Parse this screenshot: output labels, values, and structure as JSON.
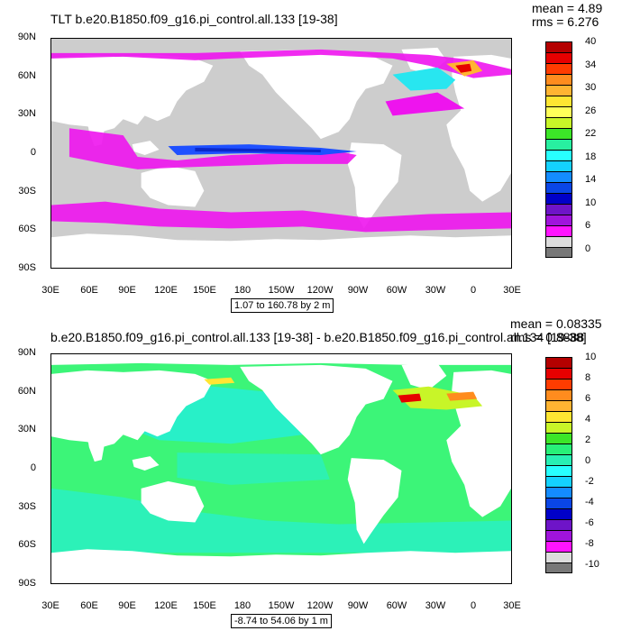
{
  "top": {
    "title": "TLT b.e20.B1850.f09_g16.pi_control.all.133 [19-38]",
    "mean": "mean = 4.89",
    "rms": "rms = 6.276",
    "range_text": "1.07 to 160.78 by 2 m",
    "colorbar": {
      "labels": [
        "40",
        "34",
        "30",
        "26",
        "22",
        "18",
        "14",
        "10",
        "6",
        "0"
      ],
      "colors": [
        "#b40000",
        "#e60000",
        "#ff3c00",
        "#ff8c1e",
        "#ffb432",
        "#ffe632",
        "#ffff5a",
        "#c8f528",
        "#3ce628",
        "#28f0a0",
        "#28ffff",
        "#14d2ff",
        "#148cff",
        "#0a46e6",
        "#0000c8",
        "#6e14c8",
        "#a014dc",
        "#ff14ff",
        "#dcdcdc",
        "#787878"
      ]
    }
  },
  "bottom": {
    "title": "b.e20.B1850.f09_g16.pi_control.all.133 [19-38] - b.e20.B1850.f09_g16.pi_control.all.134 [19-38]",
    "mean": "mean = 0.08335",
    "rms": "rms = 0.8888",
    "range_text": "-8.74 to 54.06 by 1 m",
    "colorbar": {
      "labels": [
        "10",
        "8",
        "6",
        "4",
        "2",
        "0",
        "-2",
        "-4",
        "-6",
        "-8",
        "-10"
      ],
      "colors": [
        "#b40000",
        "#e60000",
        "#ff3c00",
        "#ff8c1e",
        "#ffb432",
        "#ffe632",
        "#c8f528",
        "#3ce628",
        "#28f078",
        "#28f0b4",
        "#28ffff",
        "#14d2ff",
        "#148cff",
        "#0a46e6",
        "#0000c8",
        "#6e14c8",
        "#a014dc",
        "#ff14ff",
        "#dcdcdc",
        "#787878"
      ]
    }
  },
  "axes": {
    "lat_labels": [
      "90N",
      "60N",
      "30N",
      "0",
      "30S",
      "60S",
      "90S"
    ],
    "lon_labels": [
      "30E",
      "60E",
      "90E",
      "120E",
      "150E",
      "180",
      "150W",
      "120W",
      "90W",
      "60W",
      "30W",
      "0",
      "30E"
    ]
  },
  "colors": {
    "land": "#ffffff",
    "missing_gray": "#cdcdcd",
    "magenta": "#ee14ee",
    "blue": "#1e50ff",
    "cyan": "#28e6f0",
    "green_field": "#3cf578",
    "cyan_field": "#28f0c8"
  }
}
